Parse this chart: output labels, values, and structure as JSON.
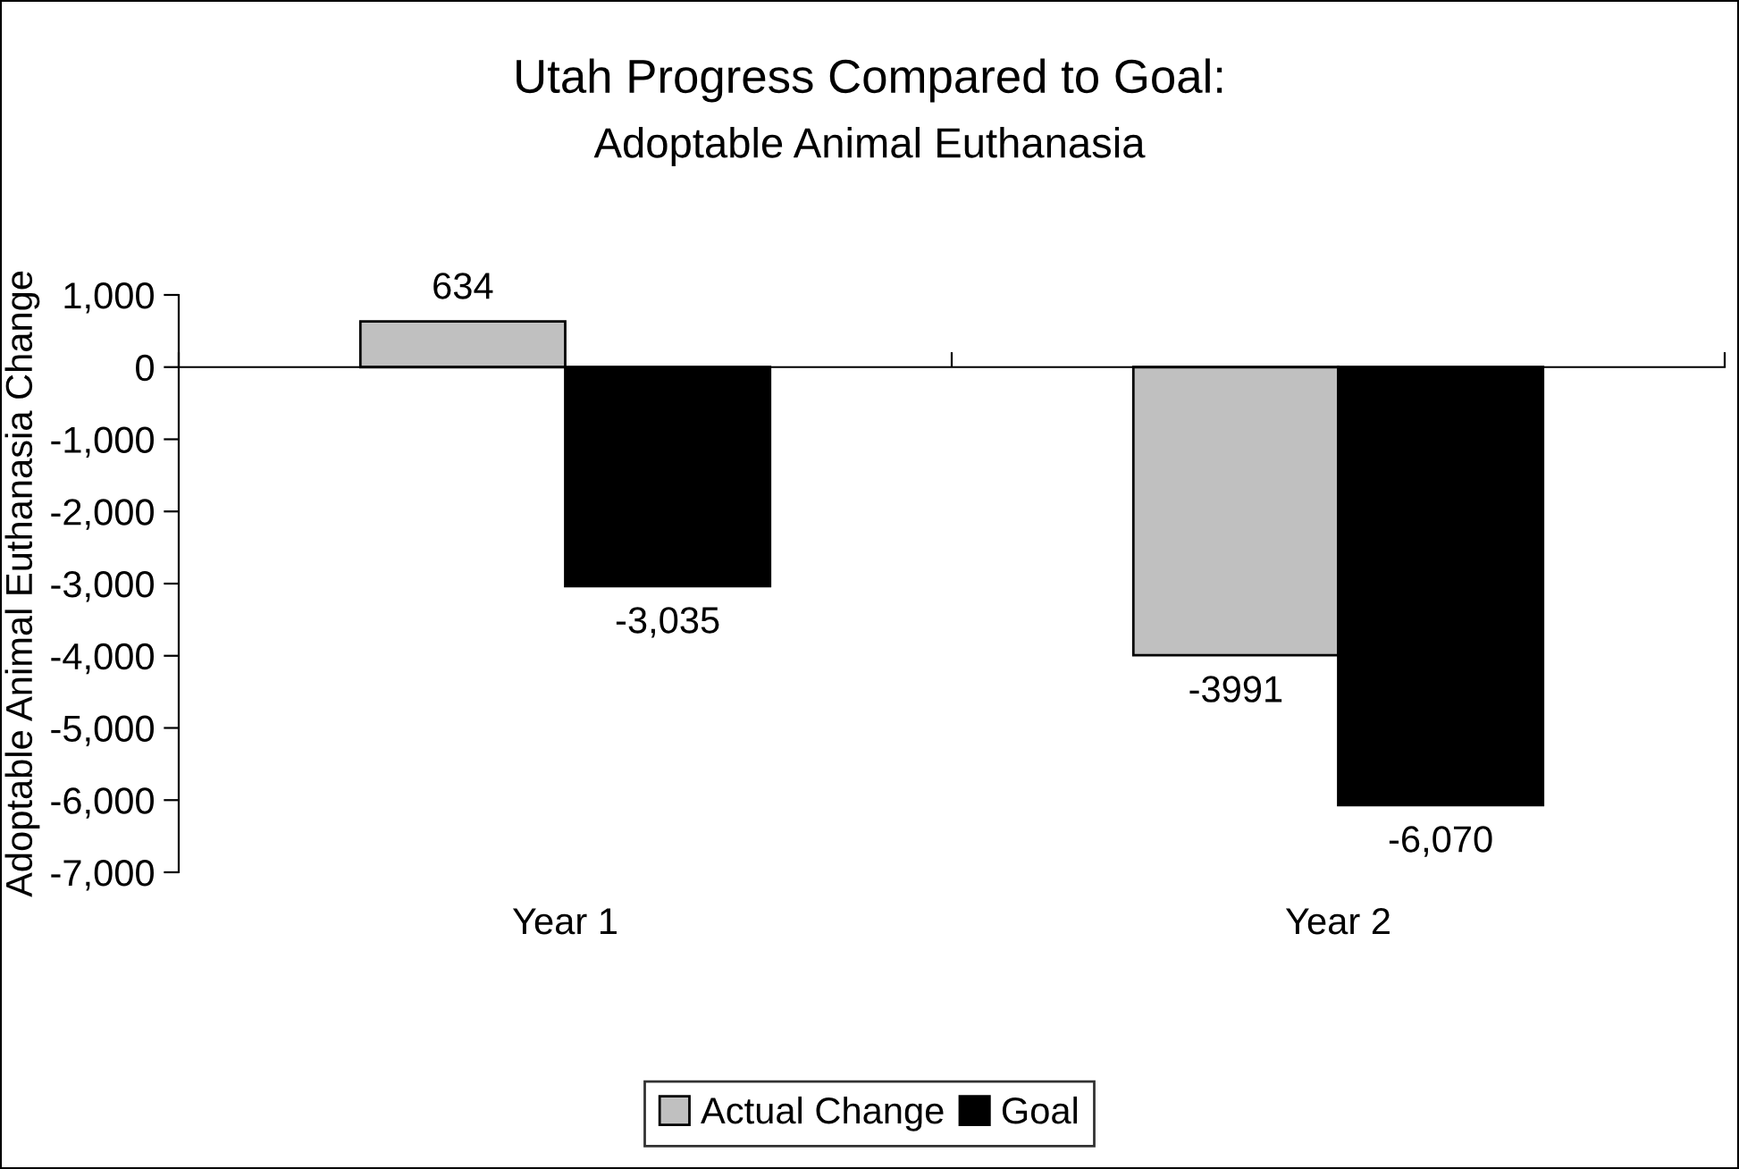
{
  "chart_data": {
    "type": "bar",
    "title": "Utah Progress Compared to Goal:",
    "subtitle": "Adoptable Animal Euthanasia",
    "ylabel": "Adoptable Animal Euthanasia Change",
    "categories": [
      "Year 1",
      "Year 2"
    ],
    "series": [
      {
        "name": "Actual Change",
        "color": "#c0c0c0",
        "values": [
          634,
          -3991
        ],
        "value_labels": [
          "634",
          "-3991"
        ]
      },
      {
        "name": "Goal",
        "color": "#000000",
        "values": [
          -3035,
          -6070
        ],
        "value_labels": [
          "-3,035",
          "-6,070"
        ]
      }
    ],
    "ylim": [
      -7000,
      1000
    ],
    "yticks": [
      {
        "value": 1000,
        "label": "1,000"
      },
      0,
      {
        "value": -1000,
        "label": "-1,000"
      },
      {
        "value": -2000,
        "label": "-2,000"
      },
      {
        "value": -3000,
        "label": "-3,000"
      },
      {
        "value": -4000,
        "label": "-4,000"
      },
      {
        "value": -5000,
        "label": "-5,000"
      },
      {
        "value": -6000,
        "label": "-6,000"
      },
      {
        "value": -7000,
        "label": "-7,000"
      }
    ],
    "legend": "bottom"
  }
}
